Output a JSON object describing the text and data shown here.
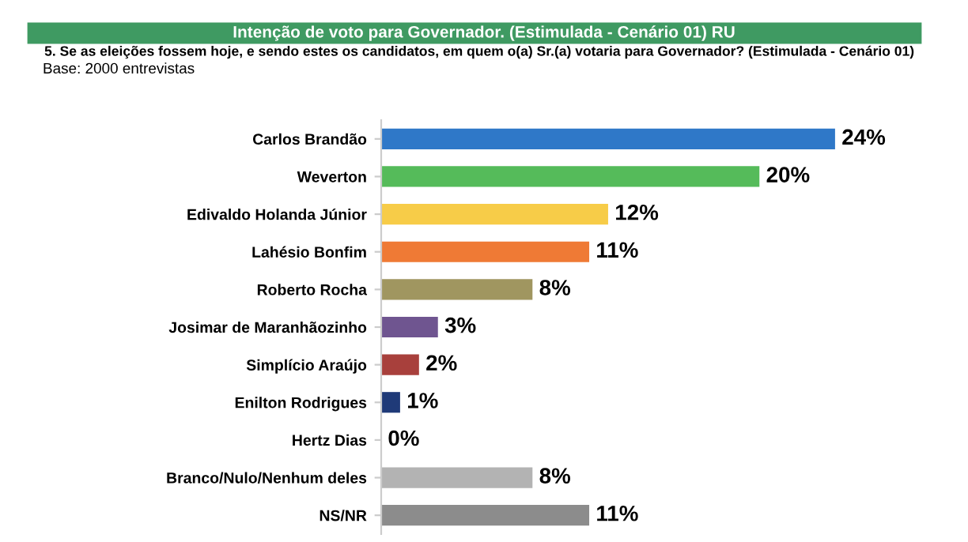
{
  "chart_data": {
    "type": "bar",
    "orientation": "horizontal",
    "title": "Intenção de voto para Governador. (Estimulada - Cenário 01) RU",
    "subtitle": "5. Se as eleições fossem hoje, e sendo estes os candidatos, em quem o(a) Sr.(a) votaria para Governador? (Estimulada - Cenário 01)",
    "annotations": [
      "Base: 2000 entrevistas"
    ],
    "categories": [
      "Carlos Brandão",
      "Weverton",
      "Edivaldo Holanda Júnior",
      "Lahésio Bonfim",
      "Roberto Rocha",
      "Josimar de Maranhãozinho",
      "Simplício Araújo",
      "Enilton Rodrigues",
      "Hertz Dias",
      "Branco/Nulo/Nenhum deles",
      "NS/NR"
    ],
    "values": [
      24,
      20,
      12,
      11,
      8,
      3,
      2,
      1,
      0,
      8,
      11
    ],
    "colors": [
      "#2f78c8",
      "#55bb5a",
      "#f7cc48",
      "#ef7a35",
      "#a09660",
      "#6f5590",
      "#a8403c",
      "#1f3a78",
      "#888888",
      "#b3b3b3",
      "#8c8c8c"
    ],
    "value_labels": [
      "24%",
      "20%",
      "12%",
      "11%",
      "8%",
      "3%",
      "2%",
      "1%",
      "0%",
      "8%",
      "11%"
    ],
    "grid": false,
    "legend": false,
    "tick_labels": "y"
  }
}
